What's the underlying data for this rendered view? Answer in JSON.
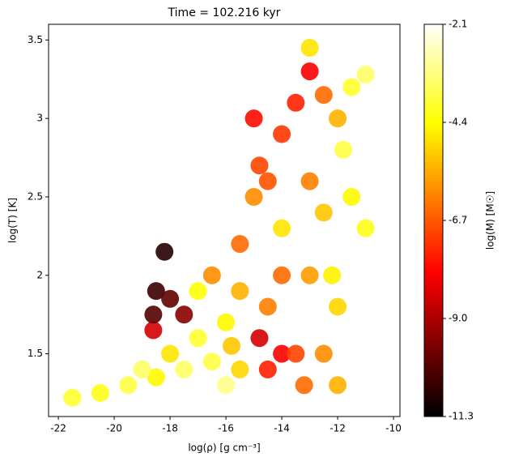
{
  "chart_data": {
    "type": "scatter",
    "title": "Time = 102.216 kyr",
    "x_label": "log(ρ) [g cm⁻³]",
    "y_label": "log(T) [K]",
    "colorbar_label": "log(M) [M☉]",
    "colormap": "hot",
    "x": [
      -21.5,
      -20.5,
      -19.5,
      -18.5,
      -17.5,
      -16.5,
      -15.5,
      -17,
      -16,
      -18,
      -18.5,
      -18,
      -18.2,
      -17.5,
      -18.6,
      -18.6,
      -16.5,
      -15.5,
      -15,
      -15.5,
      -14.5,
      -14,
      -14.5,
      -13.5,
      -14,
      -14.5,
      -14,
      -13.5,
      -13,
      -12.5,
      -12,
      -11.5,
      -11,
      -11.5,
      -11,
      -12,
      -12.5,
      -13,
      -13,
      -12.5,
      -14,
      -15,
      -14.8,
      -12,
      -13.2,
      -16,
      -19,
      -17,
      -15.8,
      -11.8,
      -13,
      -12.2,
      -14.8
    ],
    "y": [
      1.22,
      1.25,
      1.3,
      1.35,
      1.4,
      1.45,
      1.4,
      1.6,
      1.7,
      1.5,
      1.9,
      1.85,
      2.15,
      1.75,
      1.65,
      1.75,
      2.0,
      2.2,
      2.5,
      1.9,
      1.8,
      1.5,
      1.4,
      1.5,
      2.0,
      2.6,
      2.9,
      3.1,
      3.3,
      3.15,
      3.0,
      3.2,
      3.28,
      2.5,
      2.3,
      1.8,
      1.5,
      2.0,
      2.6,
      2.4,
      2.3,
      3.0,
      2.7,
      1.3,
      1.3,
      1.3,
      1.4,
      1.9,
      1.55,
      2.8,
      3.45,
      2.0,
      1.6
    ],
    "c": [
      -4.0,
      -4.2,
      -3.8,
      -4.5,
      -3.5,
      -3.8,
      -5.0,
      -4.0,
      -4.5,
      -4.8,
      -10.5,
      -10,
      -10.8,
      -9.5,
      -8.5,
      -10.2,
      -6.0,
      -6.5,
      -6.0,
      -5.5,
      -6.2,
      -8.0,
      -7.5,
      -7.0,
      -6.5,
      -6.8,
      -7.2,
      -7.5,
      -8.0,
      -6.5,
      -5.5,
      -4.0,
      -3.5,
      -4.5,
      -4.2,
      -5.0,
      -6.0,
      -5.8,
      -6.2,
      -5.2,
      -4.8,
      -7.8,
      -7.0,
      -5.5,
      -6.5,
      -3.2,
      -3.5,
      -4.4,
      -5.2,
      -3.8,
      -4.8,
      -4.6,
      -8.5
    ],
    "xlim": [
      -22.35,
      -9.77
    ],
    "xticks": [
      -22,
      -20,
      -18,
      -16,
      -14,
      -12,
      -10
    ],
    "ylim": [
      1.1,
      3.6
    ],
    "yticks": [
      1.5,
      2.0,
      2.5,
      3.0,
      3.5
    ],
    "clim": [
      -11.3,
      -2.1
    ],
    "cticks": [
      -11.3,
      {
        "value": -9,
        "label": "-9.0"
      },
      -6.7,
      -4.4,
      -2.1
    ]
  }
}
